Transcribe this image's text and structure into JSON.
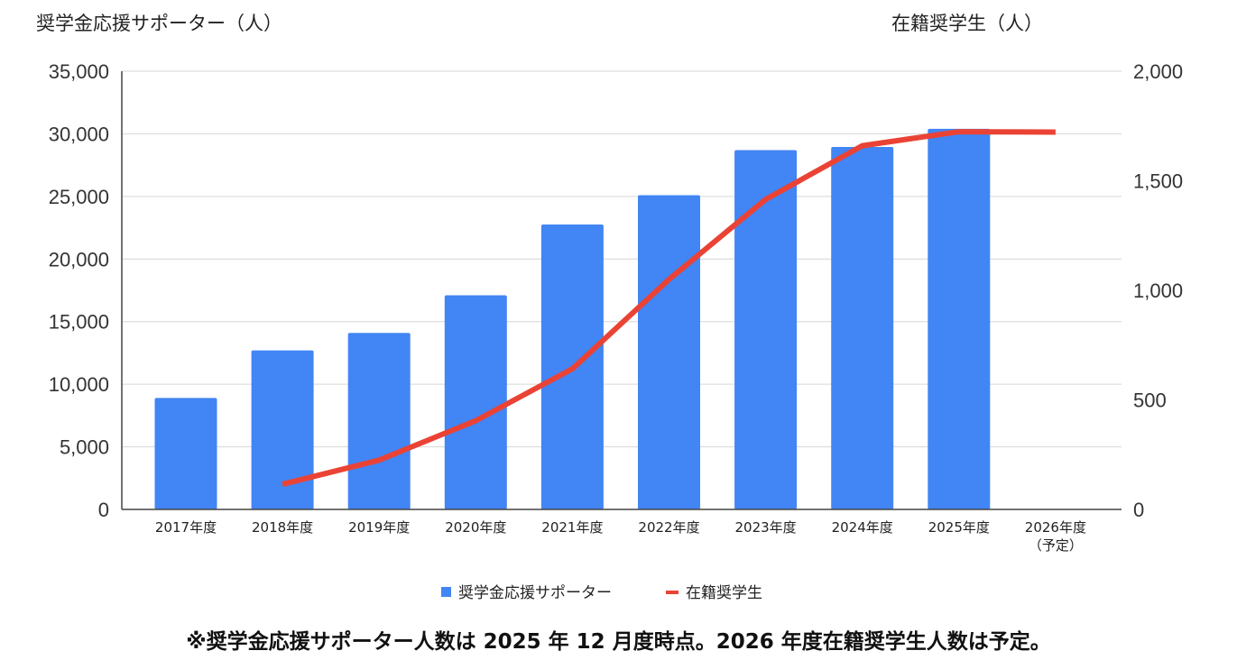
{
  "chart_data": {
    "type": "bar+line",
    "categories": [
      "2017年度",
      "2018年度",
      "2019年度",
      "2020年度",
      "2021年度",
      "2022年度",
      "2023年度",
      "2024年度",
      "2025年度",
      "2026年度\n（予定）"
    ],
    "series": [
      {
        "name": "奨学金応援サポーター",
        "type": "bar",
        "axis": "left",
        "color": "#4285f4",
        "values": [
          8900,
          12700,
          14100,
          17100,
          22760,
          25100,
          28700,
          28950,
          30400,
          null
        ]
      },
      {
        "name": "在籍奨学生",
        "type": "line",
        "axis": "right",
        "color": "#ea4335",
        "values": [
          null,
          115,
          225,
          405,
          642,
          1050,
          1415,
          1660,
          1724,
          1722
        ]
      }
    ],
    "ylabel_left": "奨学金応援サポーター（人）",
    "ylabel_right": "在籍奨学生（人）",
    "ylim_left": [
      0,
      35000
    ],
    "ylim_right": [
      0,
      2000
    ],
    "yticks_left": [
      "0",
      "5,000",
      "10,000",
      "15,000",
      "20,000",
      "25,000",
      "30,000",
      "35,000"
    ],
    "yticks_right": [
      "0",
      "500",
      "1,000",
      "1,500",
      "2,000"
    ],
    "grid": true,
    "legend": "bottom",
    "footnote": "※奨学金応援サポーター人数は 2025 年 12 月度時点。2026 年度在籍奨学生人数は予定。"
  }
}
